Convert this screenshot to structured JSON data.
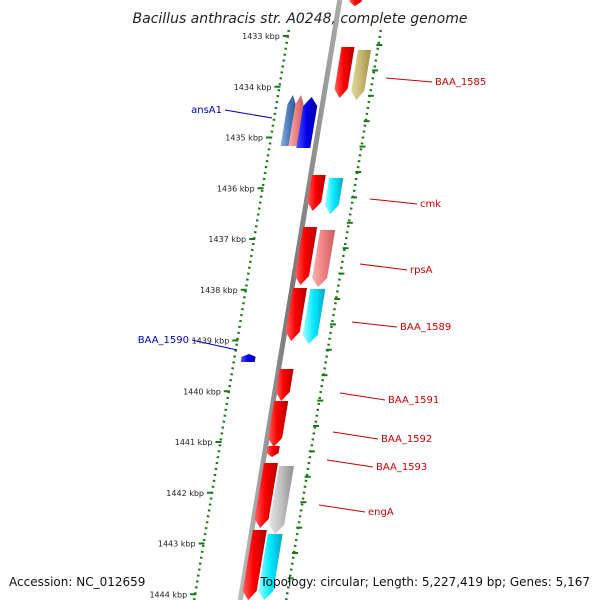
{
  "title": "Bacillus anthracis str. A0248, complete genome",
  "footer": {
    "accession": "Accession: NC_012659",
    "topology": "Topology: circular; Length: 5,227,419 bp; Genes: 5,167"
  },
  "colors": {
    "backbone": "#888888",
    "ruler": "#1a7a1a",
    "plus_label": "#cc0000",
    "minus_label": "#0000bb"
  },
  "ruler": {
    "ticks": [
      "1433 kbp",
      "1434 kbp",
      "1435 kbp",
      "1436 kbp",
      "1437 kbp",
      "1438 kbp",
      "1439 kbp",
      "1440 kbp",
      "1441 kbp",
      "1442 kbp",
      "1443 kbp",
      "1444 kbp"
    ]
  },
  "features": [
    {
      "label": "",
      "strand": "+",
      "color": "red"
    },
    {
      "label": "BAA_1585",
      "strand": "+",
      "color": "khaki"
    },
    {
      "label": "ansA1",
      "strand": "-",
      "color": "steelblue"
    },
    {
      "label": "",
      "strand": "-",
      "color": "pink"
    },
    {
      "label": "",
      "strand": "-",
      "color": "blue"
    },
    {
      "label": "",
      "strand": "+",
      "color": "red"
    },
    {
      "label": "cmk",
      "strand": "+",
      "color": "cyan"
    },
    {
      "label": "",
      "strand": "+",
      "color": "red"
    },
    {
      "label": "rpsA",
      "strand": "+",
      "color": "pink"
    },
    {
      "label": "",
      "strand": "+",
      "color": "red"
    },
    {
      "label": "BAA_1589",
      "strand": "+",
      "color": "cyan"
    },
    {
      "label": "BAA_1590",
      "strand": "-",
      "color": "blue"
    },
    {
      "label": "BAA_1591",
      "strand": "+",
      "color": "red"
    },
    {
      "label": "BAA_1592",
      "strand": "+",
      "color": "red"
    },
    {
      "label": "BAA_1593",
      "strand": "+",
      "color": "red"
    },
    {
      "label": "",
      "strand": "+",
      "color": "red"
    },
    {
      "label": "engA",
      "strand": "+",
      "color": "gray"
    },
    {
      "label": "",
      "strand": "+",
      "color": "red"
    },
    {
      "label": "",
      "strand": "+",
      "color": "cyan"
    }
  ]
}
